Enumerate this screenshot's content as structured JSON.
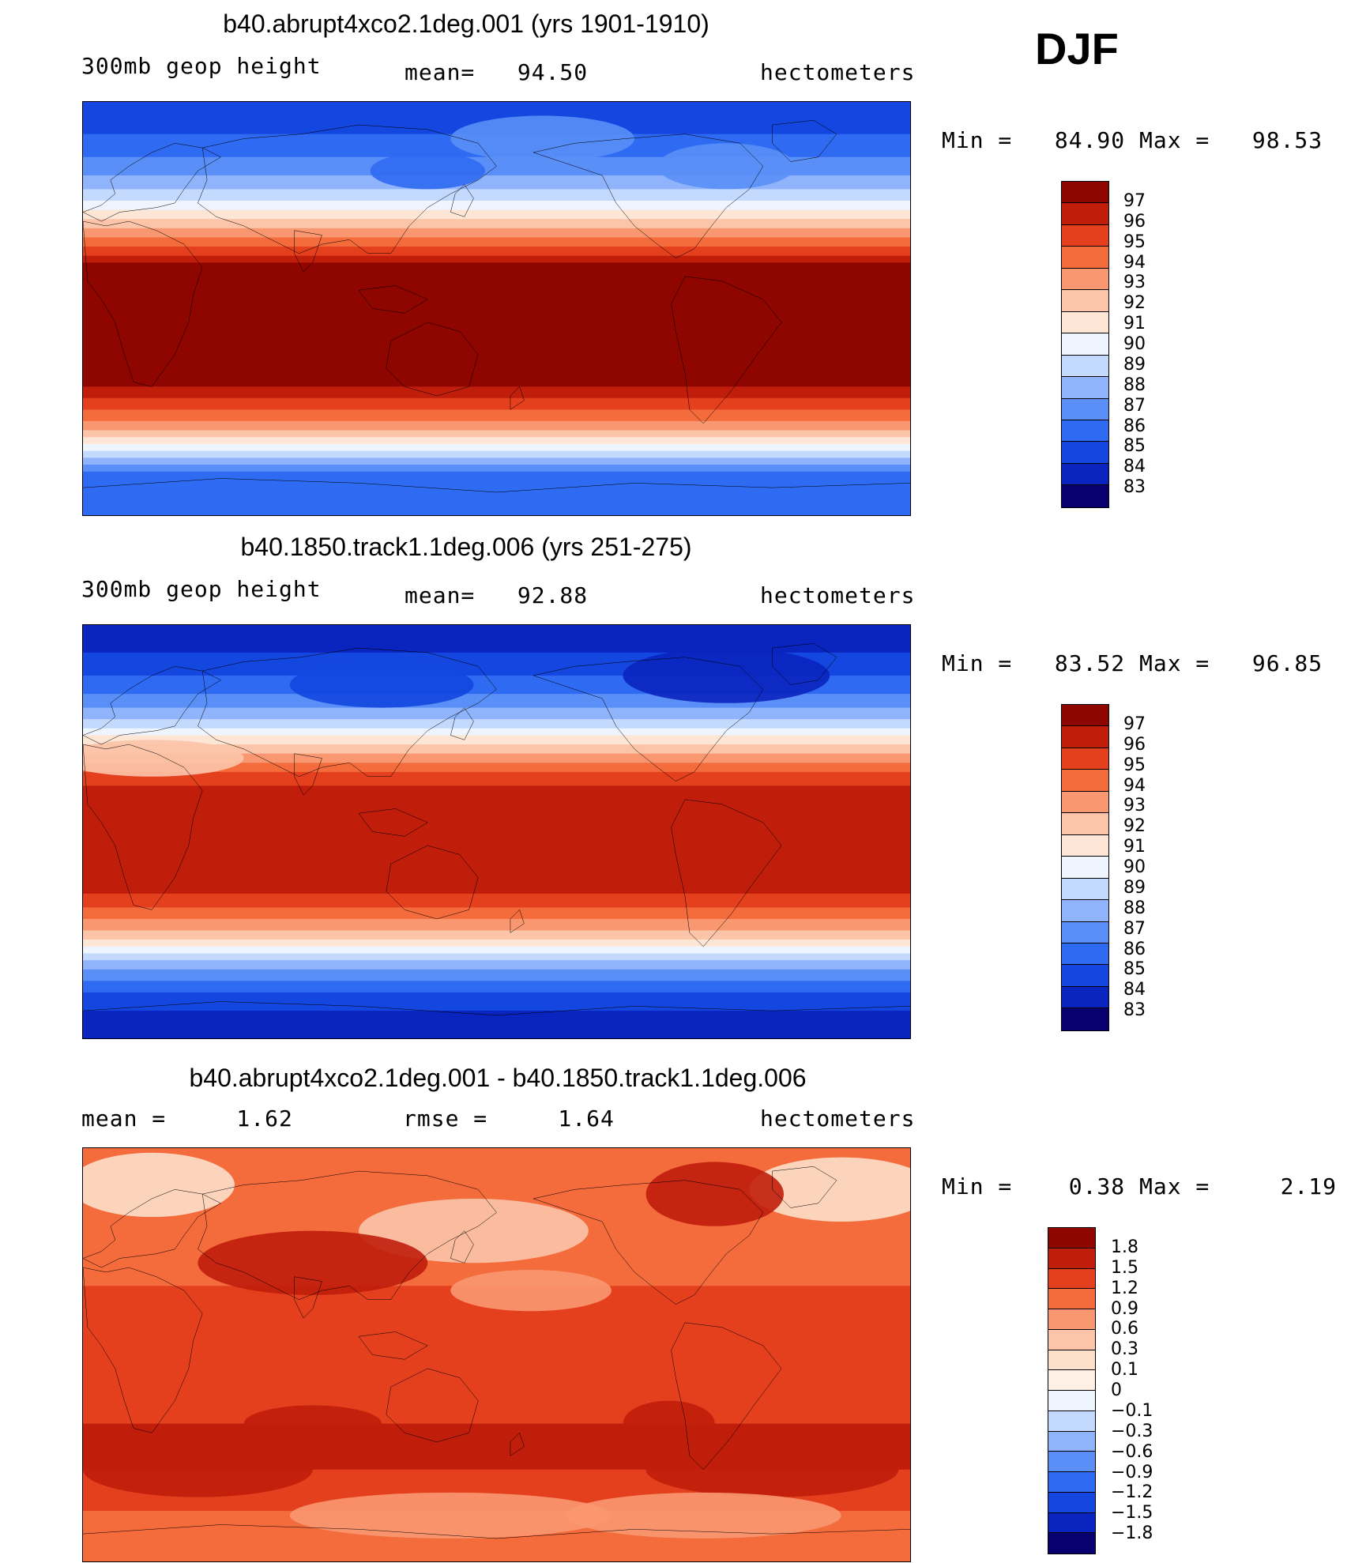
{
  "season": "DJF",
  "colors": {
    "line": "#000000",
    "levels13": [
      "#08006e",
      "#0a24bf",
      "#1347e0",
      "#2f6af2",
      "#5a8ff7",
      "#8fb4fb",
      "#c3d9fd",
      "#eef5fe",
      "#fde6d6",
      "#fcc4a8",
      "#f99870",
      "#f46b3c",
      "#e5401e",
      "#c01e0b",
      "#8f0500"
    ],
    "levels_diff": [
      "#08006e",
      "#0a24bf",
      "#1347e0",
      "#2f6af2",
      "#5a8ff7",
      "#8fb4fb",
      "#c3d9fd",
      "#eef5fe",
      "#fef0e4",
      "#fde0ca",
      "#fcc4a8",
      "#f99870",
      "#f46b3c",
      "#e5401e",
      "#c01e0b",
      "#8f0500"
    ]
  },
  "panels": [
    {
      "title": "b40.abrupt4xco2.1deg.001 (yrs 1901-1910)",
      "left_label": "300mb geop height",
      "center_label": "mean=   94.50",
      "right_label": "hectometers",
      "minmax": "Min =   84.90 Max =   98.53",
      "colorbar_labels": [
        "97",
        "96",
        "95",
        "94",
        "93",
        "92",
        "91",
        "90",
        "89",
        "88",
        "87",
        "86",
        "85",
        "84",
        "83"
      ],
      "field": "warm"
    },
    {
      "title": "b40.1850.track1.1deg.006 (yrs 251-275)",
      "left_label": "300mb geop height",
      "center_label": "mean=   92.88",
      "right_label": "hectometers",
      "minmax": "Min =   83.52 Max =   96.85",
      "colorbar_labels": [
        "97",
        "96",
        "95",
        "94",
        "93",
        "92",
        "91",
        "90",
        "89",
        "88",
        "87",
        "86",
        "85",
        "84",
        "83"
      ],
      "field": "control"
    },
    {
      "title": "b40.abrupt4xco2.1deg.001 - b40.1850.track1.1deg.006",
      "left_label": "mean =     1.62",
      "center_label": "rmse =     1.64",
      "right_label": "hectometers",
      "minmax": "Min =    0.38 Max =     2.19",
      "colorbar_labels": [
        "1.8",
        "1.5",
        "1.2",
        "0.9",
        "0.6",
        "0.3",
        "0.1",
        "0",
        "−0.1",
        "−0.3",
        "−0.6",
        "−0.9",
        "−1.2",
        "−1.5",
        "−1.8"
      ],
      "field": "diff"
    }
  ]
}
